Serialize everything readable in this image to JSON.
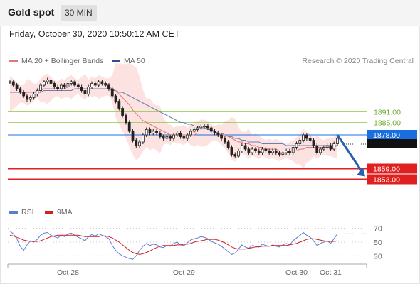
{
  "header": {
    "title": "Gold spot",
    "interval": "30 MIN"
  },
  "datetime": "Friday, October 30, 2020 10:50:12 AM CET",
  "legend": {
    "ma20": "MA 20 + Bollinger Bands",
    "ma50": "MA 50",
    "rsi": "RSI",
    "ma9": "9MA"
  },
  "copyright": "Research © 2020 Trading Central",
  "colors": {
    "ma20": "#e07a7a",
    "band": "#fde2e2",
    "ma50": "#6a7fb8",
    "green_level": "#8cc63f",
    "red_level": "#e02020",
    "current": "#1a6fe0",
    "arrow": "#2a5fb0",
    "rsi": "#5a7fd0",
    "ma9": "#d02020",
    "candle": "#222222"
  },
  "chart_data": [
    {
      "type": "candlestick",
      "y_range": [
        1840,
        1910
      ],
      "x_labels": [
        "Oct 28",
        "Oct 29",
        "Oct 30",
        "Oct 31"
      ],
      "levels": [
        {
          "label": "1891.00",
          "value": 1891,
          "kind": "resistance"
        },
        {
          "label": "1885.00",
          "value": 1885,
          "kind": "resistance"
        },
        {
          "label": "1878.00",
          "value": 1878,
          "kind": "current"
        },
        {
          "label": "1859.00",
          "value": 1859,
          "kind": "support"
        },
        {
          "label": "1853.00",
          "value": 1853,
          "kind": "support"
        }
      ],
      "close": [
        1908,
        1906,
        1904,
        1902,
        1900,
        1898,
        1899,
        1901,
        1903,
        1906,
        1908,
        1909,
        1907,
        1905,
        1904,
        1906,
        1905,
        1907,
        1908,
        1906,
        1905,
        1903,
        1901,
        1905,
        1907,
        1906,
        1908,
        1907,
        1906,
        1904,
        1900,
        1897,
        1893,
        1889,
        1885,
        1880,
        1875,
        1872,
        1874,
        1878,
        1881,
        1879,
        1880,
        1879,
        1877,
        1876,
        1877,
        1876,
        1878,
        1879,
        1877,
        1876,
        1878,
        1880,
        1881,
        1882,
        1883,
        1883,
        1882,
        1880,
        1879,
        1878,
        1876,
        1874,
        1871,
        1867,
        1866,
        1869,
        1872,
        1870,
        1868,
        1870,
        1869,
        1868,
        1870,
        1869,
        1868,
        1869,
        1868,
        1867,
        1868,
        1869,
        1868,
        1871,
        1873,
        1875,
        1878,
        1876,
        1875,
        1872,
        1868,
        1870,
        1871,
        1872,
        1870,
        1873,
        1876
      ],
      "ma20": [
        1901,
        1901,
        1901,
        1901,
        1901,
        1902,
        1902,
        1902,
        1903,
        1903,
        1904,
        1904,
        1904,
        1904,
        1904,
        1904,
        1904,
        1905,
        1905,
        1905,
        1905,
        1905,
        1905,
        1905,
        1905,
        1905,
        1905,
        1905,
        1905,
        1905,
        1904,
        1903,
        1901,
        1899,
        1897,
        1895,
        1892,
        1890,
        1888,
        1886,
        1885,
        1884,
        1883,
        1882,
        1881,
        1880,
        1879,
        1878,
        1878,
        1878,
        1878,
        1878,
        1878,
        1878,
        1878,
        1879,
        1879,
        1879,
        1879,
        1879,
        1879,
        1879,
        1878,
        1878,
        1877,
        1876,
        1875,
        1874,
        1874,
        1873,
        1873,
        1872,
        1872,
        1871,
        1871,
        1870,
        1870,
        1870,
        1870,
        1869,
        1869,
        1869,
        1869,
        1869,
        1869,
        1870,
        1870,
        1871,
        1871,
        1871,
        1871,
        1871,
        1871,
        1871,
        1871,
        1871,
        1872
      ],
      "ma50": [
        1902,
        1902,
        1902,
        1902,
        1902,
        1902,
        1902,
        1902,
        1902,
        1902,
        1903,
        1903,
        1903,
        1903,
        1903,
        1903,
        1903,
        1903,
        1903,
        1904,
        1904,
        1904,
        1904,
        1904,
        1904,
        1904,
        1904,
        1904,
        1904,
        1904,
        1903,
        1903,
        1902,
        1902,
        1901,
        1900,
        1899,
        1898,
        1897,
        1896,
        1895,
        1894,
        1893,
        1892,
        1891,
        1890,
        1889,
        1888,
        1887,
        1886,
        1885,
        1885,
        1884,
        1884,
        1883,
        1883,
        1882,
        1882,
        1881,
        1881,
        1880,
        1879,
        1879,
        1878,
        1877,
        1877,
        1876,
        1876,
        1875,
        1875,
        1874,
        1874,
        1874,
        1874,
        1873,
        1873,
        1873,
        1873,
        1873,
        1873,
        1873,
        1872,
        1872,
        1872,
        1872,
        1872,
        1872,
        1872,
        1872,
        1872,
        1872,
        1872,
        1872,
        1872,
        1872,
        1872,
        1872
      ],
      "forecast": [
        1878,
        1853
      ]
    },
    {
      "type": "line",
      "name": "RSI",
      "y_range": [
        20,
        80
      ],
      "y_ticks": [
        "70",
        "50",
        "30"
      ],
      "series": [
        {
          "name": "RSI",
          "values": [
            66,
            62,
            55,
            44,
            38,
            46,
            52,
            50,
            54,
            60,
            63,
            64,
            60,
            58,
            56,
            60,
            58,
            62,
            63,
            60,
            57,
            55,
            52,
            58,
            61,
            59,
            62,
            60,
            58,
            55,
            45,
            38,
            33,
            30,
            28,
            26,
            25,
            30,
            38,
            44,
            48,
            45,
            47,
            46,
            43,
            42,
            45,
            44,
            48,
            50,
            46,
            45,
            49,
            53,
            55,
            56,
            58,
            57,
            55,
            51,
            49,
            47,
            44,
            40,
            36,
            32,
            34,
            40,
            46,
            43,
            41,
            45,
            44,
            43,
            47,
            45,
            44,
            46,
            44,
            43,
            46,
            48,
            46,
            52,
            56,
            60,
            64,
            60,
            57,
            52,
            45,
            48,
            50,
            52,
            48,
            55,
            62
          ]
        },
        {
          "name": "9MA",
          "values": [
            60,
            59,
            57,
            55,
            53,
            52,
            51,
            51,
            51,
            52,
            54,
            56,
            58,
            59,
            60,
            60,
            60,
            60,
            60,
            60,
            60,
            59,
            58,
            58,
            58,
            58,
            58,
            59,
            59,
            58,
            56,
            53,
            50,
            46,
            42,
            38,
            35,
            33,
            32,
            33,
            35,
            37,
            40,
            42,
            44,
            45,
            45,
            45,
            45,
            46,
            46,
            47,
            47,
            48,
            50,
            51,
            52,
            53,
            54,
            54,
            54,
            53,
            51,
            49,
            46,
            43,
            41,
            40,
            40,
            40,
            41,
            42,
            43,
            43,
            44,
            44,
            44,
            45,
            45,
            45,
            45,
            45,
            46,
            47,
            48,
            50,
            52,
            54,
            55,
            55,
            54,
            53,
            52,
            51,
            51,
            51,
            52
          ]
        }
      ]
    }
  ]
}
